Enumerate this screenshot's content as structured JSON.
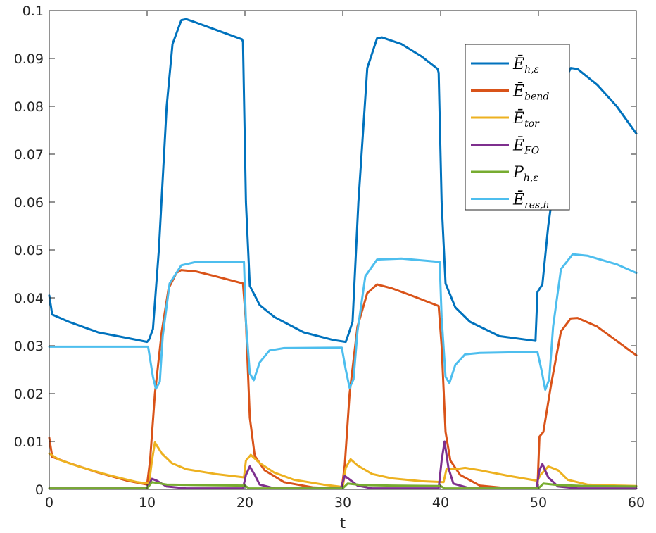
{
  "chart_data": {
    "type": "line",
    "xlabel": "t",
    "ylabel": "",
    "xlim": [
      0,
      60
    ],
    "ylim": [
      0,
      0.1
    ],
    "xticks": [
      "0",
      "10",
      "20",
      "30",
      "40",
      "50",
      "60"
    ],
    "yticks": [
      "0",
      "0.01",
      "0.02",
      "0.03",
      "0.04",
      "0.05",
      "0.06",
      "0.07",
      "0.08",
      "0.09",
      "0.1"
    ],
    "grid": false,
    "legend_position": "top-right",
    "series": [
      {
        "name": "Ē_{h,ε}",
        "legend_main": "Ē",
        "legend_sub": "h,ε",
        "color": "#0072BD",
        "points": [
          [
            0,
            0.0405
          ],
          [
            0.3,
            0.0365
          ],
          [
            2,
            0.035
          ],
          [
            5,
            0.0328
          ],
          [
            8,
            0.0316
          ],
          [
            10,
            0.0308
          ],
          [
            10.2,
            0.0313
          ],
          [
            10.6,
            0.0335
          ],
          [
            11.2,
            0.05
          ],
          [
            12,
            0.08
          ],
          [
            12.6,
            0.093
          ],
          [
            13.5,
            0.098
          ],
          [
            14,
            0.0982
          ],
          [
            15,
            0.0975
          ],
          [
            17,
            0.096
          ],
          [
            19.7,
            0.094
          ],
          [
            19.8,
            0.0935
          ],
          [
            20.1,
            0.06
          ],
          [
            20.5,
            0.0425
          ],
          [
            21.5,
            0.0385
          ],
          [
            23,
            0.036
          ],
          [
            26,
            0.0328
          ],
          [
            29,
            0.0312
          ],
          [
            30.3,
            0.0308
          ],
          [
            30.6,
            0.0325
          ],
          [
            31,
            0.035
          ],
          [
            31.6,
            0.06
          ],
          [
            32.5,
            0.088
          ],
          [
            33.5,
            0.0942
          ],
          [
            34,
            0.0944
          ],
          [
            36,
            0.093
          ],
          [
            38,
            0.0905
          ],
          [
            39.7,
            0.0878
          ],
          [
            39.8,
            0.087
          ],
          [
            40.1,
            0.06
          ],
          [
            40.5,
            0.043
          ],
          [
            41.5,
            0.038
          ],
          [
            43,
            0.035
          ],
          [
            46,
            0.032
          ],
          [
            49.7,
            0.031
          ],
          [
            49.9,
            0.0412
          ],
          [
            50.4,
            0.0428
          ],
          [
            51,
            0.055
          ],
          [
            52,
            0.07
          ],
          [
            52.6,
            0.085
          ],
          [
            53.3,
            0.088
          ],
          [
            54,
            0.0878
          ],
          [
            56,
            0.0845
          ],
          [
            58,
            0.08
          ],
          [
            60,
            0.0743
          ]
        ]
      },
      {
        "name": "Ē_{bend}",
        "legend_main": "Ē",
        "legend_sub": "bend",
        "color": "#D95319",
        "points": [
          [
            0,
            0.0108
          ],
          [
            0.3,
            0.0068
          ],
          [
            2,
            0.0055
          ],
          [
            5,
            0.0035
          ],
          [
            8,
            0.0018
          ],
          [
            10,
            0.001
          ],
          [
            10.3,
            0.006
          ],
          [
            10.8,
            0.02
          ],
          [
            11.5,
            0.033
          ],
          [
            12.2,
            0.042
          ],
          [
            13,
            0.0452
          ],
          [
            13.5,
            0.0458
          ],
          [
            15,
            0.0455
          ],
          [
            17,
            0.0445
          ],
          [
            19.8,
            0.043
          ],
          [
            20.1,
            0.035
          ],
          [
            20.5,
            0.015
          ],
          [
            21,
            0.007
          ],
          [
            22,
            0.004
          ],
          [
            24,
            0.0015
          ],
          [
            27,
            0.0004
          ],
          [
            29.9,
            0.0002
          ],
          [
            30.2,
            0.005
          ],
          [
            30.7,
            0.02
          ],
          [
            31.5,
            0.034
          ],
          [
            32.5,
            0.041
          ],
          [
            33.5,
            0.0428
          ],
          [
            35,
            0.042
          ],
          [
            37,
            0.0405
          ],
          [
            39.8,
            0.0383
          ],
          [
            40.1,
            0.03
          ],
          [
            40.5,
            0.012
          ],
          [
            41,
            0.006
          ],
          [
            42,
            0.003
          ],
          [
            44,
            0.0008
          ],
          [
            47,
            0.0002
          ],
          [
            49.9,
            0.0002
          ],
          [
            50.1,
            0.011
          ],
          [
            50.5,
            0.012
          ],
          [
            51.3,
            0.022
          ],
          [
            52.3,
            0.033
          ],
          [
            53.3,
            0.0357
          ],
          [
            54,
            0.0358
          ],
          [
            56,
            0.034
          ],
          [
            58,
            0.031
          ],
          [
            60,
            0.028
          ]
        ]
      },
      {
        "name": "Ē_{tor}",
        "legend_main": "Ē",
        "legend_sub": "tor",
        "color": "#EDB120",
        "points": [
          [
            0,
            0.0075
          ],
          [
            1,
            0.0062
          ],
          [
            3,
            0.0048
          ],
          [
            6,
            0.003
          ],
          [
            9,
            0.0015
          ],
          [
            10.2,
            0.0012
          ],
          [
            10.5,
            0.006
          ],
          [
            10.8,
            0.0098
          ],
          [
            11.5,
            0.0075
          ],
          [
            12.5,
            0.0055
          ],
          [
            14,
            0.0042
          ],
          [
            17,
            0.0032
          ],
          [
            19.9,
            0.0025
          ],
          [
            20.1,
            0.006
          ],
          [
            20.6,
            0.0072
          ],
          [
            21.5,
            0.0055
          ],
          [
            23,
            0.0035
          ],
          [
            25,
            0.002
          ],
          [
            28,
            0.001
          ],
          [
            30,
            0.0005
          ],
          [
            30.3,
            0.0045
          ],
          [
            30.8,
            0.0063
          ],
          [
            31.5,
            0.005
          ],
          [
            33,
            0.0032
          ],
          [
            35,
            0.0023
          ],
          [
            38,
            0.0017
          ],
          [
            40.3,
            0.0015
          ],
          [
            40.6,
            0.0042
          ],
          [
            41.5,
            0.0042
          ],
          [
            42.5,
            0.0045
          ],
          [
            44,
            0.004
          ],
          [
            47,
            0.0028
          ],
          [
            49.9,
            0.0018
          ],
          [
            50.2,
            0.003
          ],
          [
            51,
            0.0048
          ],
          [
            52,
            0.004
          ],
          [
            53,
            0.002
          ],
          [
            55,
            0.001
          ],
          [
            58,
            0.0008
          ],
          [
            60,
            0.0007
          ]
        ]
      },
      {
        "name": "Ē_{FO}",
        "legend_main": "Ē",
        "legend_sub": "FO",
        "color": "#7E2F8E",
        "points": [
          [
            0,
            0.0002
          ],
          [
            10,
            0.0002
          ],
          [
            10.5,
            0.0022
          ],
          [
            11,
            0.0018
          ],
          [
            12,
            0.0006
          ],
          [
            14,
            0.0002
          ],
          [
            19.8,
            0.0002
          ],
          [
            20.1,
            0.003
          ],
          [
            20.5,
            0.0048
          ],
          [
            21,
            0.003
          ],
          [
            21.5,
            0.001
          ],
          [
            23,
            0.0002
          ],
          [
            29.8,
            0.0002
          ],
          [
            30.2,
            0.0028
          ],
          [
            30.6,
            0.0022
          ],
          [
            31.5,
            0.0008
          ],
          [
            33,
            0.0002
          ],
          [
            39.8,
            0.0002
          ],
          [
            40.1,
            0.006
          ],
          [
            40.4,
            0.01
          ],
          [
            40.8,
            0.0045
          ],
          [
            41.3,
            0.0012
          ],
          [
            43,
            0.0002
          ],
          [
            49.8,
            0.0002
          ],
          [
            50.1,
            0.004
          ],
          [
            50.4,
            0.0053
          ],
          [
            51,
            0.0025
          ],
          [
            52,
            0.0006
          ],
          [
            54,
            0.0002
          ],
          [
            60,
            0.0002
          ]
        ]
      },
      {
        "name": "P_{h,ε}",
        "legend_main": "P",
        "legend_sub": "h,ε",
        "color": "#77AC30",
        "points": [
          [
            0,
            0.0002
          ],
          [
            10,
            0.0002
          ],
          [
            10.5,
            0.0015
          ],
          [
            12,
            0.001
          ],
          [
            15,
            0.0009
          ],
          [
            20,
            0.0008
          ],
          [
            20.4,
            0.0002
          ],
          [
            30,
            0.0002
          ],
          [
            30.5,
            0.0012
          ],
          [
            32,
            0.0009
          ],
          [
            35,
            0.0008
          ],
          [
            40,
            0.0007
          ],
          [
            40.4,
            0.0002
          ],
          [
            50,
            0.0002
          ],
          [
            50.5,
            0.0012
          ],
          [
            52,
            0.0009
          ],
          [
            55,
            0.0007
          ],
          [
            60,
            0.0006
          ]
        ]
      },
      {
        "name": "Ē_{res,h}",
        "legend_main": "Ē",
        "legend_sub": "res,h",
        "color": "#4DBEEE",
        "points": [
          [
            0,
            0.0298
          ],
          [
            10.1,
            0.0298
          ],
          [
            10.6,
            0.0235
          ],
          [
            10.9,
            0.021
          ],
          [
            11.3,
            0.0225
          ],
          [
            11.6,
            0.032
          ],
          [
            12.3,
            0.043
          ],
          [
            13.5,
            0.0468
          ],
          [
            15,
            0.0475
          ],
          [
            18,
            0.0475
          ],
          [
            19.9,
            0.0475
          ],
          [
            20.1,
            0.035
          ],
          [
            20.5,
            0.0242
          ],
          [
            20.9,
            0.0228
          ],
          [
            21.5,
            0.0265
          ],
          [
            22.5,
            0.029
          ],
          [
            24,
            0.0295
          ],
          [
            29.9,
            0.0296
          ],
          [
            30.3,
            0.025
          ],
          [
            30.7,
            0.0212
          ],
          [
            31.1,
            0.023
          ],
          [
            31.5,
            0.033
          ],
          [
            32.3,
            0.0445
          ],
          [
            33.5,
            0.048
          ],
          [
            36,
            0.0482
          ],
          [
            39.9,
            0.0475
          ],
          [
            40.1,
            0.036
          ],
          [
            40.5,
            0.0235
          ],
          [
            40.9,
            0.0222
          ],
          [
            41.5,
            0.026
          ],
          [
            42.5,
            0.0282
          ],
          [
            44,
            0.0285
          ],
          [
            49.9,
            0.0287
          ],
          [
            50.3,
            0.025
          ],
          [
            50.7,
            0.0208
          ],
          [
            51.1,
            0.023
          ],
          [
            51.5,
            0.034
          ],
          [
            52.3,
            0.046
          ],
          [
            53.5,
            0.0491
          ],
          [
            55,
            0.0488
          ],
          [
            58,
            0.047
          ],
          [
            60,
            0.0452
          ]
        ]
      }
    ]
  }
}
